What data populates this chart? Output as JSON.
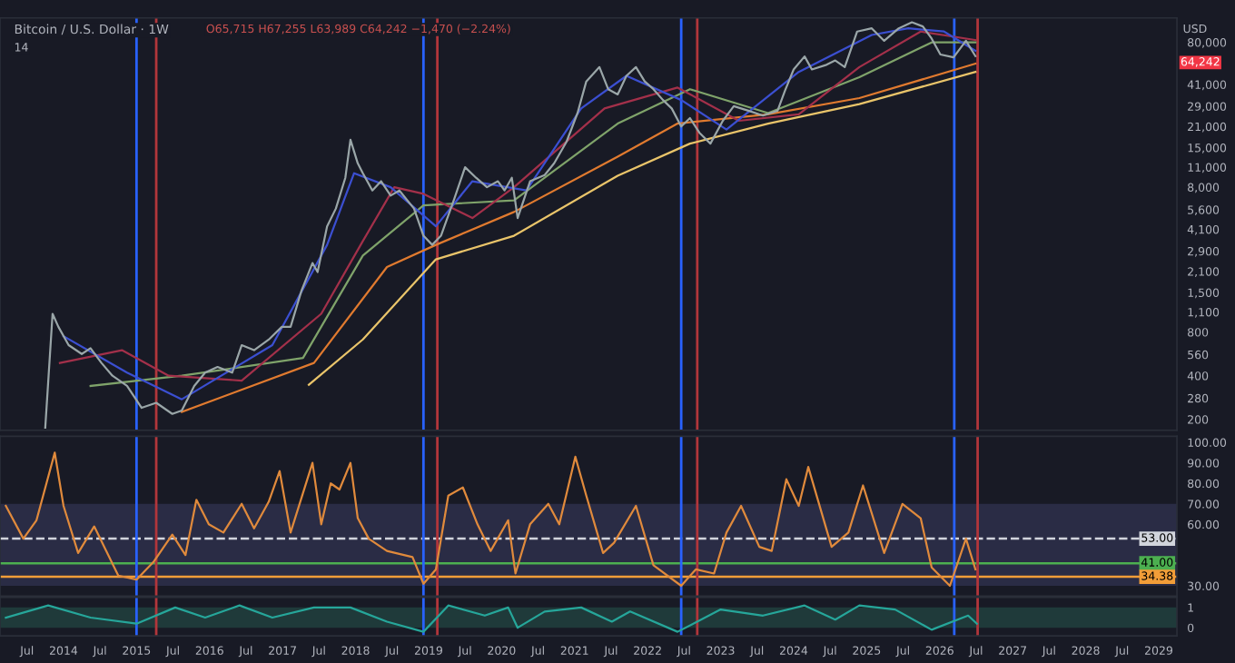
{
  "chart_data": [
    {
      "type": "line",
      "title": "Bitcoin / U.S. Dollar · 1W",
      "log": "y",
      "grid": false,
      "tick_labels": "y",
      "annotations": [
        "O65,715 H67,255 L63,989 C64,242 −1,470 (−2.24%)",
        "14",
        "USD",
        "64,242"
      ],
      "xlim": [
        2013.13,
        2029.25
      ],
      "ylim": [
        168,
        118000
      ],
      "yticks": [
        200,
        280,
        400,
        560,
        800,
        {
          "value": 1100,
          "label": "1,100"
        },
        {
          "value": 1500,
          "label": "1,500"
        },
        {
          "value": 2100,
          "label": "2,100"
        },
        {
          "value": 2900,
          "label": "2,900"
        },
        {
          "value": 4100,
          "label": "4,100"
        },
        {
          "value": 5600,
          "label": "5,600"
        },
        {
          "value": 8000,
          "label": "8,000"
        },
        {
          "value": 11000,
          "label": "11,000"
        },
        {
          "value": 15000,
          "label": "15,000"
        },
        {
          "value": 21000,
          "label": "21,000"
        },
        {
          "value": 29000,
          "label": "29,000"
        },
        {
          "value": 41000,
          "label": "41,000"
        },
        {
          "value": 80000,
          "label": "80,000"
        }
      ],
      "ref_lines": [
        {
          "axis": "x",
          "value": 2015.0,
          "color": "#2962ff"
        },
        {
          "axis": "x",
          "value": 2015.27,
          "color": "#b2363b"
        },
        {
          "axis": "x",
          "value": 2018.93,
          "color": "#2962ff"
        },
        {
          "axis": "x",
          "value": 2019.12,
          "color": "#b2363b"
        },
        {
          "axis": "x",
          "value": 2022.46,
          "color": "#2962ff"
        },
        {
          "axis": "x",
          "value": 2022.68,
          "color": "#b2363b"
        },
        {
          "axis": "x",
          "value": 2026.2,
          "color": "#2962ff"
        },
        {
          "axis": "x",
          "value": 2026.52,
          "color": "#b2363b"
        }
      ],
      "series": [
        {
          "color": "#e9c46a",
          "x": [
            2017.36,
            2018.1,
            2019.1,
            2020.17,
            2021.59,
            2022.58,
            2023.65,
            2024.9,
            2026.49
          ],
          "values": [
            346,
            712,
            2540,
            3700,
            9600,
            16000,
            22000,
            30000,
            50000
          ]
        },
        {
          "color": "#e07a2f",
          "x": [
            2015.62,
            2017.43,
            2018.43,
            2019.1,
            2020.17,
            2021.59,
            2022.41,
            2023.65,
            2024.9,
            2026.49
          ],
          "values": [
            225,
            490,
            2250,
            3200,
            5400,
            13000,
            22000,
            25500,
            33000,
            57000
          ]
        },
        {
          "color": "#7fa36a",
          "x": [
            2014.37,
            2015.62,
            2017.28,
            2018.1,
            2018.93,
            2020.17,
            2021.59,
            2022.58,
            2023.65,
            2024.9,
            2025.89,
            2026.49
          ],
          "values": [
            340,
            400,
            530,
            2700,
            6000,
            6500,
            22000,
            38000,
            26000,
            46000,
            80000,
            80000
          ]
        },
        {
          "color": "#a3304a",
          "x": [
            2013.95,
            2014.8,
            2015.44,
            2016.44,
            2017.53,
            2018.1,
            2018.53,
            2018.93,
            2019.6,
            2020.17,
            2021.41,
            2022.41,
            2023.25,
            2024.07,
            2024.9,
            2025.74,
            2026.49
          ],
          "values": [
            490,
            600,
            400,
            370,
            1070,
            3400,
            8000,
            7200,
            4900,
            8000,
            28000,
            39000,
            23000,
            25500,
            54000,
            95000,
            83000
          ]
        },
        {
          "color": "#3b4fd1",
          "x": [
            2014.0,
            2014.87,
            2015.62,
            2016.86,
            2017.61,
            2017.98,
            2018.48,
            2019.1,
            2019.6,
            2020.34,
            2021.09,
            2021.71,
            2022.46,
            2023.08,
            2024.07,
            2025.07,
            2025.57,
            2026.06,
            2026.49
          ],
          "values": [
            750,
            420,
            275,
            650,
            3200,
            10000,
            8000,
            4300,
            8800,
            7600,
            28000,
            47000,
            32000,
            20000,
            50000,
            90000,
            100000,
            95000,
            70000
          ]
        },
        {
          "color": "#9aa6a8",
          "x": [
            2013.75,
            2013.85,
            2013.93,
            2014.07,
            2014.25,
            2014.37,
            2014.52,
            2014.67,
            2014.87,
            2015.07,
            2015.27,
            2015.49,
            2015.62,
            2015.79,
            2015.94,
            2016.11,
            2016.31,
            2016.44,
            2016.61,
            2016.81,
            2016.99,
            2017.11,
            2017.26,
            2017.41,
            2017.48,
            2017.61,
            2017.73,
            2017.86,
            2017.93,
            2018.03,
            2018.1,
            2018.23,
            2018.35,
            2018.48,
            2018.6,
            2018.8,
            2018.93,
            2019.05,
            2019.17,
            2019.35,
            2019.5,
            2019.65,
            2019.8,
            2019.95,
            2020.04,
            2020.14,
            2020.22,
            2020.39,
            2020.59,
            2020.72,
            2020.89,
            2021.04,
            2021.16,
            2021.34,
            2021.46,
            2021.59,
            2021.71,
            2021.84,
            2021.96,
            2022.08,
            2022.21,
            2022.33,
            2022.46,
            2022.58,
            2022.71,
            2022.86,
            2023.03,
            2023.18,
            2023.38,
            2023.58,
            2023.78,
            2023.88,
            2024.0,
            2024.15,
            2024.25,
            2024.45,
            2024.57,
            2024.7,
            2024.87,
            2025.07,
            2025.24,
            2025.44,
            2025.62,
            2025.77,
            2025.89,
            2026.01,
            2026.19,
            2026.36,
            2026.49
          ],
          "values": [
            175,
            1070,
            870,
            650,
            565,
            620,
            490,
            400,
            340,
            240,
            260,
            218,
            230,
            340,
            420,
            460,
            420,
            650,
            600,
            710,
            870,
            870,
            1550,
            2400,
            2080,
            4300,
            5700,
            9300,
            17000,
            11700,
            10000,
            7600,
            8800,
            7000,
            7600,
            5700,
            3700,
            3200,
            3700,
            6600,
            11000,
            9300,
            8000,
            8800,
            7600,
            9300,
            4900,
            8800,
            9700,
            11700,
            16500,
            26000,
            43000,
            54000,
            38000,
            35000,
            47000,
            54000,
            43000,
            38000,
            32000,
            28000,
            21000,
            24000,
            19000,
            16000,
            23000,
            29000,
            27000,
            25000,
            27000,
            37000,
            52000,
            64000,
            52000,
            56000,
            60000,
            54000,
            95000,
            100000,
            82000,
            100000,
            110000,
            103000,
            85000,
            66000,
            63000,
            82000,
            64242
          ]
        }
      ]
    },
    {
      "type": "line",
      "grid": false,
      "tick_labels": "y",
      "xlim": [
        2013.13,
        2029.25
      ],
      "ylim": [
        25,
        103
      ],
      "yticks": [
        {
          "value": 100,
          "label": "100.00"
        },
        {
          "value": 90,
          "label": "90.00"
        },
        {
          "value": 80,
          "label": "80.00"
        },
        {
          "value": 70,
          "label": "70.00"
        },
        {
          "value": 60,
          "label": "60.00"
        },
        {
          "value": 30,
          "label": "30.00"
        }
      ],
      "bands": [
        {
          "axis": "y",
          "from": 30,
          "to": 70,
          "color": "#2a2c45"
        }
      ],
      "ref_lines": [
        {
          "axis": "y",
          "value": 53,
          "label": "53.00",
          "color": "#d1d4dc",
          "line_style": "dashed"
        },
        {
          "axis": "y",
          "value": 41,
          "label": "41.00",
          "color": "#4caf50"
        },
        {
          "axis": "y",
          "value": 34.38,
          "label": "34.38",
          "color": "#f29d38"
        },
        {
          "axis": "x",
          "value": 2015.0,
          "color": "#2962ff"
        },
        {
          "axis": "x",
          "value": 2015.27,
          "color": "#b2363b"
        },
        {
          "axis": "x",
          "value": 2018.93,
          "color": "#2962ff"
        },
        {
          "axis": "x",
          "value": 2019.12,
          "color": "#b2363b"
        },
        {
          "axis": "x",
          "value": 2022.46,
          "color": "#2962ff"
        },
        {
          "axis": "x",
          "value": 2022.68,
          "color": "#b2363b"
        },
        {
          "axis": "x",
          "value": 2026.2,
          "color": "#2962ff"
        },
        {
          "axis": "x",
          "value": 2026.52,
          "color": "#b2363b"
        }
      ],
      "series": [
        {
          "color": "#e08a3c",
          "x": [
            2013.21,
            2013.45,
            2013.63,
            2013.88,
            2014.0,
            2014.2,
            2014.42,
            2014.75,
            2015.0,
            2015.24,
            2015.49,
            2015.67,
            2015.82,
            2015.99,
            2016.19,
            2016.44,
            2016.61,
            2016.81,
            2016.96,
            2017.11,
            2017.41,
            2017.53,
            2017.66,
            2017.78,
            2017.93,
            2018.03,
            2018.18,
            2018.43,
            2018.78,
            2018.93,
            2019.1,
            2019.27,
            2019.47,
            2019.67,
            2019.85,
            2020.09,
            2020.19,
            2020.39,
            2020.64,
            2020.79,
            2021.01,
            2021.16,
            2021.39,
            2021.54,
            2021.84,
            2022.08,
            2022.46,
            2022.66,
            2022.91,
            2023.08,
            2023.28,
            2023.53,
            2023.7,
            2023.9,
            2024.07,
            2024.2,
            2024.52,
            2024.75,
            2024.95,
            2025.24,
            2025.49,
            2025.74,
            2025.89,
            2026.14,
            2026.36,
            2026.49
          ],
          "values": [
            69,
            53,
            62,
            95,
            69,
            46,
            59,
            35,
            33,
            42,
            55,
            45,
            72,
            60,
            56,
            70,
            58,
            71,
            86,
            56,
            90,
            60,
            80,
            77,
            90,
            63,
            53,
            47,
            44,
            31,
            38,
            74,
            78,
            60,
            47,
            62,
            36,
            60,
            70,
            60,
            93,
            74,
            46,
            51,
            69,
            40,
            30,
            38,
            36,
            56,
            69,
            49,
            47,
            82,
            69,
            88,
            49,
            56,
            79,
            46,
            70,
            63,
            39,
            30,
            53,
            38
          ]
        }
      ]
    },
    {
      "type": "line",
      "grid": false,
      "xlim": [
        2013.13,
        2029.25
      ],
      "ylim": [
        -0.4,
        1.5
      ],
      "yticks": [
        0,
        1
      ],
      "xticks": [
        {
          "value": 2013.5,
          "label": "Jul"
        },
        2014,
        {
          "value": 2014.5,
          "label": "Jul"
        },
        2015,
        {
          "value": 2015.5,
          "label": "Jul"
        },
        2016,
        {
          "value": 2016.5,
          "label": "Jul"
        },
        2017,
        {
          "value": 2017.5,
          "label": "Jul"
        },
        2018,
        {
          "value": 2018.5,
          "label": "Jul"
        },
        2019,
        {
          "value": 2019.5,
          "label": "Jul"
        },
        2020,
        {
          "value": 2020.5,
          "label": "Jul"
        },
        2021,
        {
          "value": 2021.5,
          "label": "Jul"
        },
        2022,
        {
          "value": 2022.5,
          "label": "Jul"
        },
        2023,
        {
          "value": 2023.5,
          "label": "Jul"
        },
        2024,
        {
          "value": 2024.5,
          "label": "Jul"
        },
        2025,
        {
          "value": 2025.5,
          "label": "Jul"
        },
        2026,
        {
          "value": 2026.5,
          "label": "Jul"
        },
        2027,
        {
          "value": 2027.5,
          "label": "Jul"
        },
        2028,
        {
          "value": 2028.5,
          "label": "Jul"
        },
        2029
      ],
      "bands": [
        {
          "axis": "y",
          "from": 0,
          "to": 1,
          "color": "#1f3a3a"
        }
      ],
      "ref_lines": [
        {
          "axis": "x",
          "value": 2015.0,
          "color": "#2962ff"
        },
        {
          "axis": "x",
          "value": 2015.27,
          "color": "#b2363b"
        },
        {
          "axis": "x",
          "value": 2018.93,
          "color": "#2962ff"
        },
        {
          "axis": "x",
          "value": 2019.12,
          "color": "#b2363b"
        },
        {
          "axis": "x",
          "value": 2022.46,
          "color": "#2962ff"
        },
        {
          "axis": "x",
          "value": 2022.68,
          "color": "#b2363b"
        },
        {
          "axis": "x",
          "value": 2026.2,
          "color": "#2962ff"
        },
        {
          "axis": "x",
          "value": 2026.52,
          "color": "#b2363b"
        }
      ],
      "series": [
        {
          "color": "#26a69a",
          "x": [
            2013.21,
            2013.79,
            2014.37,
            2015.0,
            2015.53,
            2015.94,
            2016.41,
            2016.86,
            2017.43,
            2017.93,
            2018.43,
            2018.93,
            2019.27,
            2019.77,
            2020.09,
            2020.22,
            2020.59,
            2021.09,
            2021.51,
            2021.76,
            2022.41,
            2023.0,
            2023.58,
            2024.15,
            2024.57,
            2024.9,
            2025.39,
            2025.89,
            2026.39,
            2026.51
          ],
          "values": [
            0.5,
            1.1,
            0.5,
            0.2,
            1.0,
            0.5,
            1.1,
            0.5,
            1.0,
            1.0,
            0.3,
            -0.2,
            1.1,
            0.6,
            1.0,
            0.0,
            0.8,
            1.0,
            0.3,
            0.8,
            -0.2,
            0.9,
            0.6,
            1.1,
            0.4,
            1.1,
            0.9,
            -0.1,
            0.6,
            0.2
          ]
        }
      ]
    }
  ]
}
